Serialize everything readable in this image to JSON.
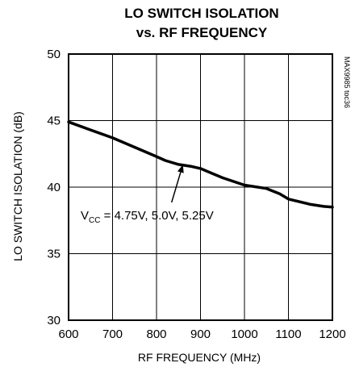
{
  "chart_data": {
    "type": "line",
    "title_line1": "LO SWITCH ISOLATION",
    "title_line2": "vs. RF FREQUENCY",
    "xlabel": "RF FREQUENCY (MHz)",
    "ylabel": "LO SWITCH ISOLATION (dB)",
    "xlim": [
      600,
      1200
    ],
    "ylim": [
      30,
      50
    ],
    "x_ticks": [
      600,
      700,
      800,
      900,
      1000,
      1100,
      1200
    ],
    "y_ticks": [
      30,
      35,
      40,
      45,
      50
    ],
    "grid": true,
    "series": [
      {
        "x": [
          600,
          650,
          700,
          750,
          800,
          820,
          850,
          880,
          900,
          950,
          1000,
          1050,
          1080,
          1100,
          1150,
          1180,
          1200
        ],
        "values": [
          44.9,
          44.3,
          43.7,
          43.0,
          42.3,
          42.0,
          41.7,
          41.55,
          41.4,
          40.7,
          40.15,
          39.9,
          39.5,
          39.1,
          38.7,
          38.55,
          38.5
        ]
      }
    ],
    "annotation": {
      "prefix": "V",
      "subscript": "CC",
      "text": " = 4.75V, 5.0V, 5.25V",
      "points_to": [
        860,
        41.7
      ]
    },
    "side_note": "MAX9985 toc36",
    "colors": {
      "line": "#000000",
      "grid": "#000000",
      "background": "#ffffff"
    }
  }
}
